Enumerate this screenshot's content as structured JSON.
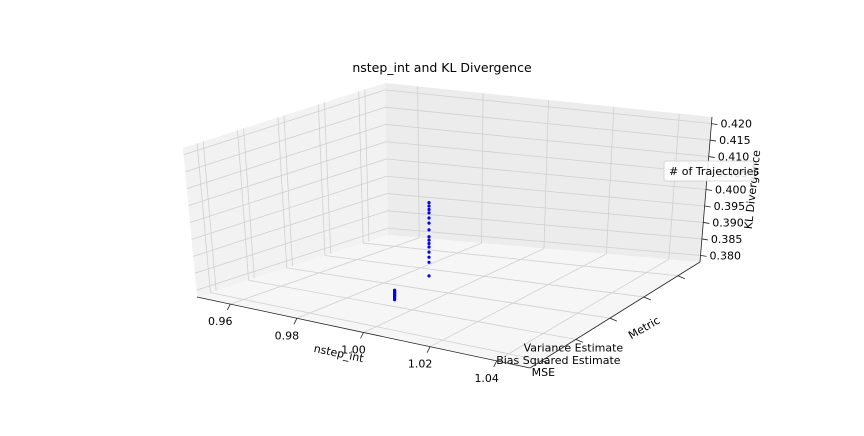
{
  "chart_data": {
    "type": "scatter",
    "title": "nstep_int and KL Divergence",
    "xlabel": "nstep_int",
    "ylabel": "Metric",
    "zlabel": "KL Divergence",
    "x_ticks": [
      "0.96",
      "0.98",
      "1.00",
      "1.02",
      "1.04"
    ],
    "y_ticks": [
      "MSE",
      "Bias Squared Estimate",
      "Variance Estimate"
    ],
    "z_ticks": [
      "0.380",
      "0.385",
      "0.390",
      "0.395",
      "0.400",
      "0.405",
      "0.410",
      "0.415",
      "0.420"
    ],
    "xlim": [
      0.95,
      1.05
    ],
    "zlim": [
      0.378,
      0.422
    ],
    "grid": true,
    "legend": {
      "title": "# of Trajectories",
      "placement": "right"
    },
    "series_color": "#0000ff",
    "points": [
      {
        "x": 1.0,
        "metric": "MSE",
        "z": 0.3858
      },
      {
        "x": 1.0,
        "metric": "MSE",
        "z": 0.3862
      },
      {
        "x": 1.0,
        "metric": "MSE",
        "z": 0.3866
      },
      {
        "x": 1.0,
        "metric": "MSE",
        "z": 0.3868
      },
      {
        "x": 1.0,
        "metric": "MSE",
        "z": 0.387
      },
      {
        "x": 1.0,
        "metric": "MSE",
        "z": 0.3872
      },
      {
        "x": 1.0,
        "metric": "MSE",
        "z": 0.3874
      },
      {
        "x": 1.0,
        "metric": "MSE",
        "z": 0.3876
      },
      {
        "x": 1.0,
        "metric": "MSE",
        "z": 0.3878
      },
      {
        "x": 1.0,
        "metric": "MSE",
        "z": 0.388
      },
      {
        "x": 1.0,
        "metric": "MSE",
        "z": 0.3882
      },
      {
        "x": 1.0,
        "metric": "MSE",
        "z": 0.3884
      },
      {
        "x": 1.0,
        "metric": "MSE",
        "z": 0.3886
      },
      {
        "x": 1.0,
        "metric": "Bias Squared Estimate",
        "z": 0.3895
      },
      {
        "x": 1.0,
        "metric": "Bias Squared Estimate",
        "z": 0.3935
      },
      {
        "x": 1.0,
        "metric": "Bias Squared Estimate",
        "z": 0.395
      },
      {
        "x": 1.0,
        "metric": "Bias Squared Estimate",
        "z": 0.3965
      },
      {
        "x": 1.0,
        "metric": "Bias Squared Estimate",
        "z": 0.398
      },
      {
        "x": 1.0,
        "metric": "Bias Squared Estimate",
        "z": 0.399
      },
      {
        "x": 1.0,
        "metric": "Bias Squared Estimate",
        "z": 0.4
      },
      {
        "x": 1.0,
        "metric": "Bias Squared Estimate",
        "z": 0.401
      },
      {
        "x": 1.0,
        "metric": "Bias Squared Estimate",
        "z": 0.403
      },
      {
        "x": 1.0,
        "metric": "Bias Squared Estimate",
        "z": 0.405
      },
      {
        "x": 1.0,
        "metric": "Bias Squared Estimate",
        "z": 0.4065
      },
      {
        "x": 1.0,
        "metric": "Bias Squared Estimate",
        "z": 0.408
      },
      {
        "x": 1.0,
        "metric": "Bias Squared Estimate",
        "z": 0.409
      },
      {
        "x": 1.0,
        "metric": "Bias Squared Estimate",
        "z": 0.41
      },
      {
        "x": 1.0,
        "metric": "Bias Squared Estimate",
        "z": 0.411
      }
    ]
  }
}
